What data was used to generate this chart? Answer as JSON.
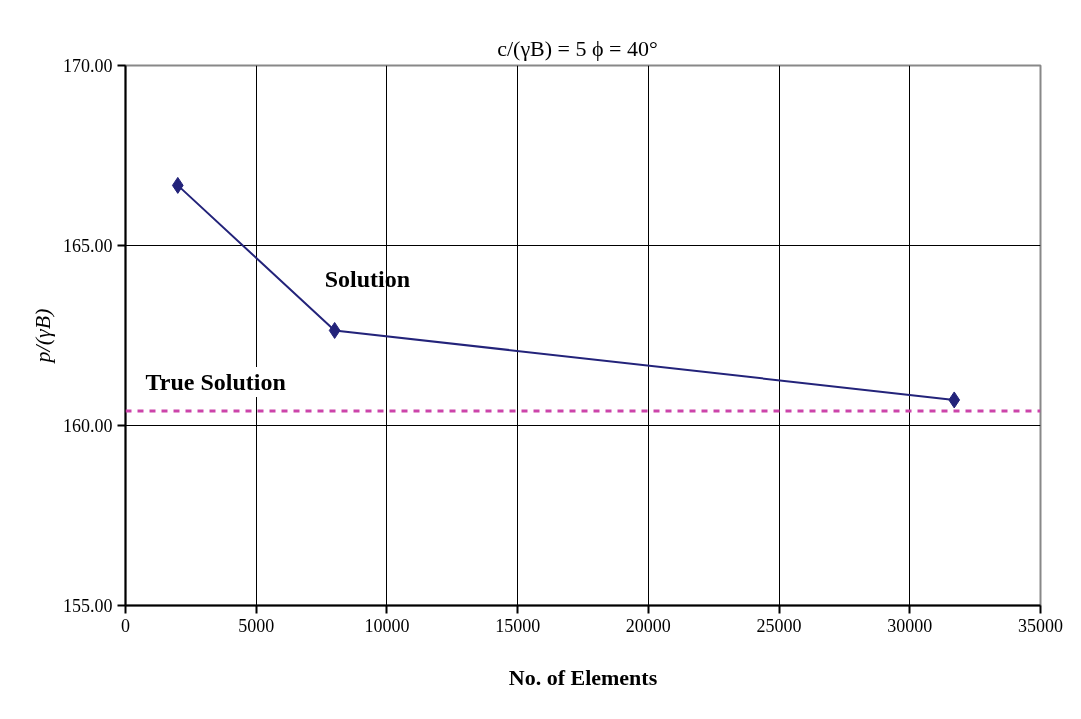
{
  "chart_data": {
    "type": "line",
    "title": "c/(γB) = 5   ϕ = 40°",
    "xlabel": "No. of Elements",
    "ylabel": "p/(γB)",
    "series": [
      {
        "name": "Solution",
        "color": "#23237a",
        "x": [
          2000,
          8000,
          31700
        ],
        "values": [
          166.67,
          162.64,
          160.71
        ]
      }
    ],
    "xlim": [
      0,
      35000
    ],
    "xticks": [
      0,
      5000,
      10000,
      15000,
      20000,
      25000,
      30000,
      35000
    ],
    "ylim": [
      155,
      170
    ],
    "yticks": [
      {
        "value": 155,
        "label": "155.00"
      },
      {
        "value": 160,
        "label": "160.00"
      },
      {
        "value": 165,
        "label": "165.00"
      },
      {
        "value": 170,
        "label": "170.00"
      }
    ],
    "ref_lines": [
      {
        "axis": "y",
        "value": 160.4,
        "label": "True Solution",
        "color": "#cc44aa",
        "line_style": "dashed"
      }
    ],
    "grid": true,
    "marker": "diamond",
    "line_style": "solid"
  }
}
